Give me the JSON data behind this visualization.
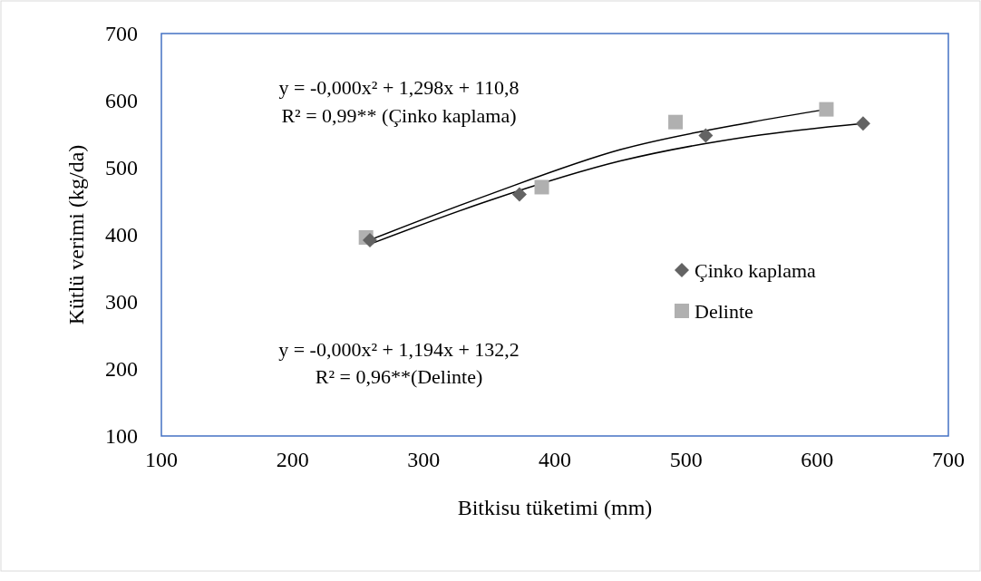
{
  "chart_data": {
    "type": "scatter",
    "xlabel": "Bitkisu tüketimi (mm)",
    "ylabel": "Kütlü verimi (kg/da)",
    "xlim": [
      100,
      700
    ],
    "xticks": [
      100,
      200,
      300,
      400,
      500,
      600,
      700
    ],
    "ylim": [
      100,
      700
    ],
    "yticks": [
      100,
      200,
      300,
      400,
      500,
      600,
      700
    ],
    "grid": false,
    "legend": "right",
    "series": [
      {
        "name": "Çinko kaplama",
        "color": "#636363",
        "marker": "diamond",
        "x": [
          259,
          373,
          515,
          635
        ],
        "values": [
          392,
          460,
          548,
          566
        ]
      },
      {
        "name": "Delinte",
        "color": "#b0b0b0",
        "marker": "square",
        "x": [
          256,
          390,
          492,
          607
        ],
        "values": [
          396,
          471,
          568,
          587
        ]
      },
      {
        "type": "line",
        "color": "#000000",
        "marker": "none",
        "x": [
          259,
          350,
          450,
          550,
          635
        ],
        "values": [
          386,
          451,
          510,
          547,
          566
        ]
      },
      {
        "type": "line",
        "color": "#000000",
        "marker": "none",
        "x": [
          256,
          350,
          450,
          550,
          607
        ],
        "values": [
          390,
          460,
          527,
          568,
          587
        ]
      }
    ],
    "annotations": [
      "y = -0,000x² + 1,298x + 110,8",
      "R² = 0,99** (Çinko kaplama)",
      "y = -0,000x² + 1,194x + 132,2",
      "R² = 0,96**(Delinte)"
    ]
  }
}
